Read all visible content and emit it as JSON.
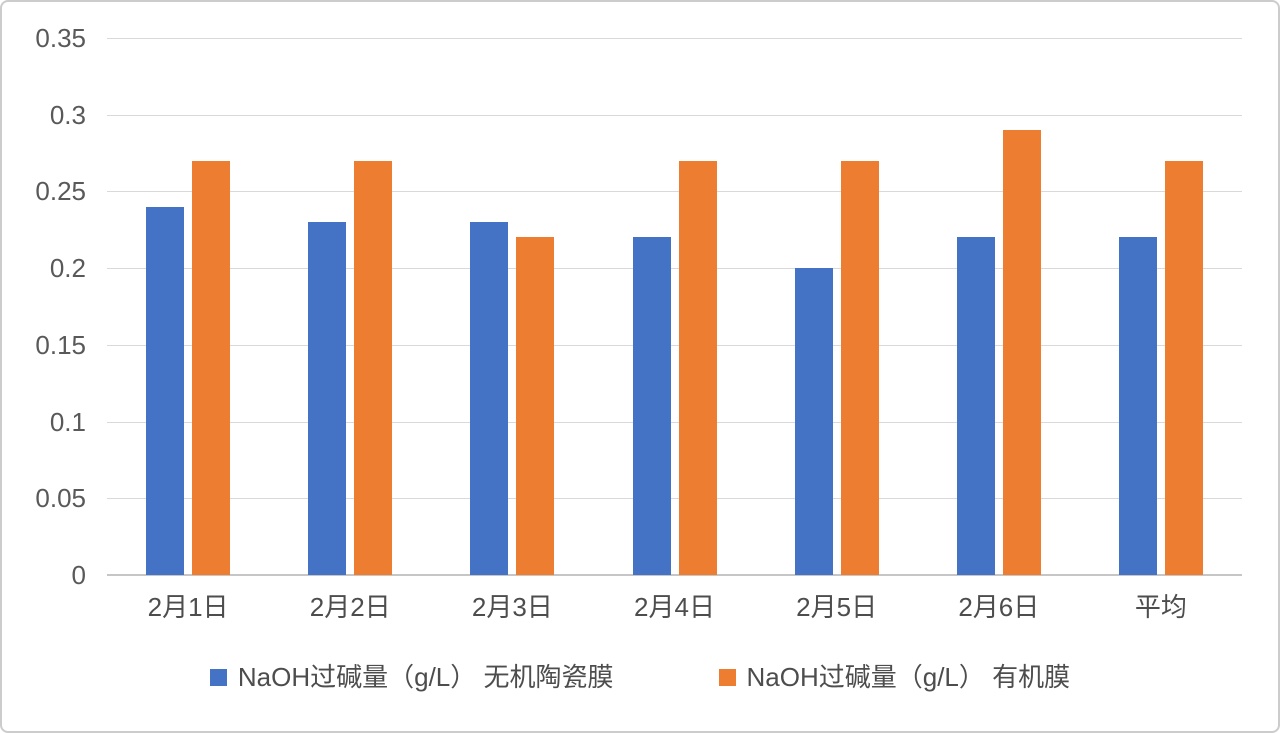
{
  "chart_data": {
    "type": "bar",
    "title": "",
    "xlabel": "",
    "ylabel": "",
    "categories": [
      "2月1日",
      "2月2日",
      "2月3日",
      "2月4日",
      "2月5日",
      "2月6日",
      "平均"
    ],
    "series": [
      {
        "name": "NaOH过碱量（g/L） 无机陶瓷膜",
        "color": "#4472C4",
        "values": [
          0.24,
          0.23,
          0.23,
          0.22,
          0.2,
          0.22,
          0.22
        ]
      },
      {
        "name": "NaOH过碱量（g/L） 有机膜",
        "color": "#ED7D31",
        "values": [
          0.27,
          0.27,
          0.22,
          0.27,
          0.27,
          0.29,
          0.27
        ]
      }
    ],
    "ylim": [
      0,
      0.35
    ],
    "yticks": [
      0,
      0.05,
      0.1,
      0.15,
      0.2,
      0.25,
      0.3,
      0.35
    ],
    "ytick_labels": [
      "0",
      "0.05",
      "0.1",
      "0.15",
      "0.2",
      "0.25",
      "0.3",
      "0.35"
    ],
    "grid": true,
    "legend_position": "bottom"
  },
  "colors": {
    "series_blue": "#4472C4",
    "series_orange": "#ED7D31",
    "gridline": "#D9D9D9",
    "axis_line": "#C6C6C6",
    "ytick_text": "#595959",
    "xtick_text": "#4D4D4D",
    "frame_border": "#CCCCCC",
    "background": "#FFFFFF"
  }
}
